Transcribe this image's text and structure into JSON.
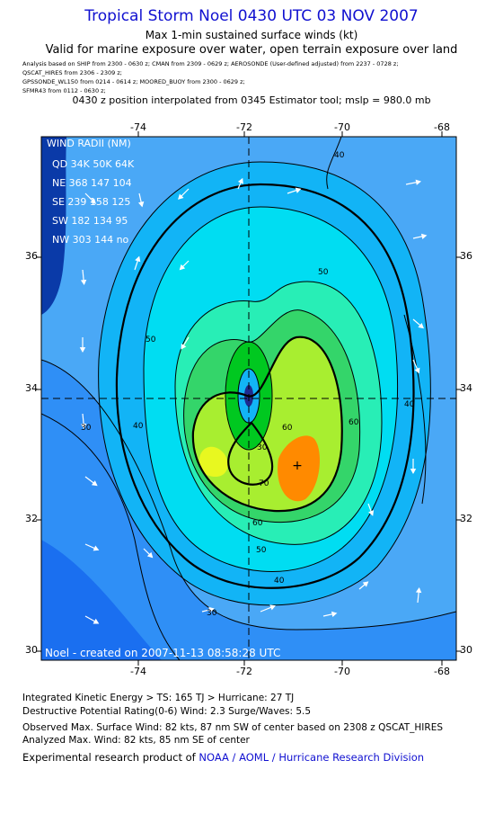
{
  "header": {
    "title": "Tropical Storm Noel 0430 UTC 03 NOV 2007",
    "subtitle1": "Max 1-min sustained surface winds (kt)",
    "subtitle2": "Valid for marine exposure over water, open terrain exposure over land",
    "sources": [
      "Analysis based on  SHIP from 2300 - 0630 z;  CMAN from 2309 - 0629 z;  AEROSONDE (User-defined adjusted) from 2237 - 0728 z;",
      "QSCAT_HIRES from 2306 - 2309 z;",
      "GPSSONDE_WL150 from 0214 - 0614 z;  MOORED_BUOY from 2300 - 0629 z;",
      "SFMR43 from 0112 - 0630 z;"
    ],
    "position_note": "0430 z position interpolated from 0345 Estimator tool; mslp = 980.0 mb"
  },
  "map": {
    "lon_ticks": [
      "-74",
      "-72",
      "-70",
      "-68"
    ],
    "lat_ticks": [
      "36",
      "34",
      "32",
      "30"
    ],
    "center": {
      "lon": -71.8,
      "lat": 33.85
    },
    "max_wind_mark": {
      "lon": -70.9,
      "lat": 32.8
    },
    "wind_radii": {
      "title": "WIND RADII (NM)",
      "header": "QD 34K 50K 64K",
      "rows": [
        "NE 368 147 104",
        "SE 239 158 125",
        "SW 182 134  95",
        "NW 303 144  no"
      ]
    },
    "contour_labels": [
      "30",
      "30",
      "40",
      "40",
      "40",
      "40",
      "50",
      "50",
      "50",
      "60",
      "60",
      "60",
      "70",
      "30"
    ],
    "credit": "Noel - created on 2007-11-13 08:58:28 UTC",
    "fill_colors": [
      "#1a6ff0",
      "#2f8ff6",
      "#12b4f6",
      "#00ddf2",
      "#28eeb6",
      "#34d56a",
      "#00c820",
      "#a8ee30",
      "#e8f820",
      "#ff8a00",
      "#1e2a8e"
    ],
    "bg_color": "#4aa8f6"
  },
  "footer": {
    "line1": "Integrated Kinetic Energy > TS: 165 TJ   > Hurricane: 27 TJ",
    "line2": "Destructive Potential Rating(0-6)   Wind: 2.3 Surge/Waves: 5.5",
    "line3": "Observed Max. Surface Wind: 82 kts, 87 nm SW of center based on 2308 z QSCAT_HIRES",
    "line4": "Analyzed Max. Wind: 82 kts, 85 nm SE of center",
    "line5_prefix": "Experimental research product of ",
    "line5_link": "NOAA / AOML / Hurricane Research Division"
  }
}
